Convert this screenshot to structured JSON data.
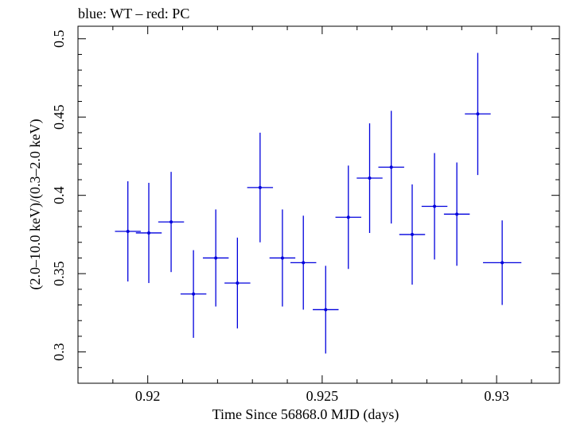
{
  "chart_data": {
    "type": "scatter",
    "title": "blue: WT – red: PC",
    "xlabel": "Time Since 56868.0 MJD (days)",
    "ylabel": "(2.0–10.0 keV)/(0.3–2.0 keV)",
    "xlim": [
      0.918,
      0.9318
    ],
    "ylim": [
      0.28,
      0.508
    ],
    "x_ticks": [
      0.92,
      0.925,
      0.93
    ],
    "x_tick_labels": [
      "0.92",
      "0.925",
      "0.93"
    ],
    "y_ticks": [
      0.3,
      0.35,
      0.4,
      0.45,
      0.5
    ],
    "y_tick_labels": [
      "0.3",
      "0.35",
      "0.4",
      "0.45",
      "0.5"
    ],
    "grid": false,
    "series": [
      {
        "color": "#0000dd",
        "points": [
          {
            "x": 0.91943,
            "xerr": 0.00037,
            "y": 0.377,
            "yerr": 0.032
          },
          {
            "x": 0.92003,
            "xerr": 0.00037,
            "y": 0.376,
            "yerr": 0.032
          },
          {
            "x": 0.92067,
            "xerr": 0.00037,
            "y": 0.383,
            "yerr": 0.032
          },
          {
            "x": 0.92131,
            "xerr": 0.00037,
            "y": 0.337,
            "yerr": 0.028
          },
          {
            "x": 0.92195,
            "xerr": 0.00037,
            "y": 0.36,
            "yerr": 0.031
          },
          {
            "x": 0.92257,
            "xerr": 0.00037,
            "y": 0.344,
            "yerr": 0.029
          },
          {
            "x": 0.92322,
            "xerr": 0.00037,
            "y": 0.405,
            "yerr": 0.035
          },
          {
            "x": 0.92386,
            "xerr": 0.00037,
            "y": 0.36,
            "yerr": 0.031
          },
          {
            "x": 0.92446,
            "xerr": 0.00037,
            "y": 0.357,
            "yerr": 0.03
          },
          {
            "x": 0.9251,
            "xerr": 0.00037,
            "y": 0.327,
            "yerr": 0.028
          },
          {
            "x": 0.92575,
            "xerr": 0.00037,
            "y": 0.386,
            "yerr": 0.033
          },
          {
            "x": 0.92636,
            "xerr": 0.00037,
            "y": 0.411,
            "yerr": 0.035
          },
          {
            "x": 0.92698,
            "xerr": 0.00037,
            "y": 0.418,
            "yerr": 0.036
          },
          {
            "x": 0.92758,
            "xerr": 0.00037,
            "y": 0.375,
            "yerr": 0.032
          },
          {
            "x": 0.92822,
            "xerr": 0.00037,
            "y": 0.393,
            "yerr": 0.034
          },
          {
            "x": 0.92886,
            "xerr": 0.00037,
            "y": 0.388,
            "yerr": 0.033
          },
          {
            "x": 0.92946,
            "xerr": 0.00037,
            "y": 0.452,
            "yerr": 0.039
          },
          {
            "x": 0.93016,
            "xerr": 0.00055,
            "y": 0.357,
            "yerr": 0.027
          }
        ]
      }
    ]
  }
}
